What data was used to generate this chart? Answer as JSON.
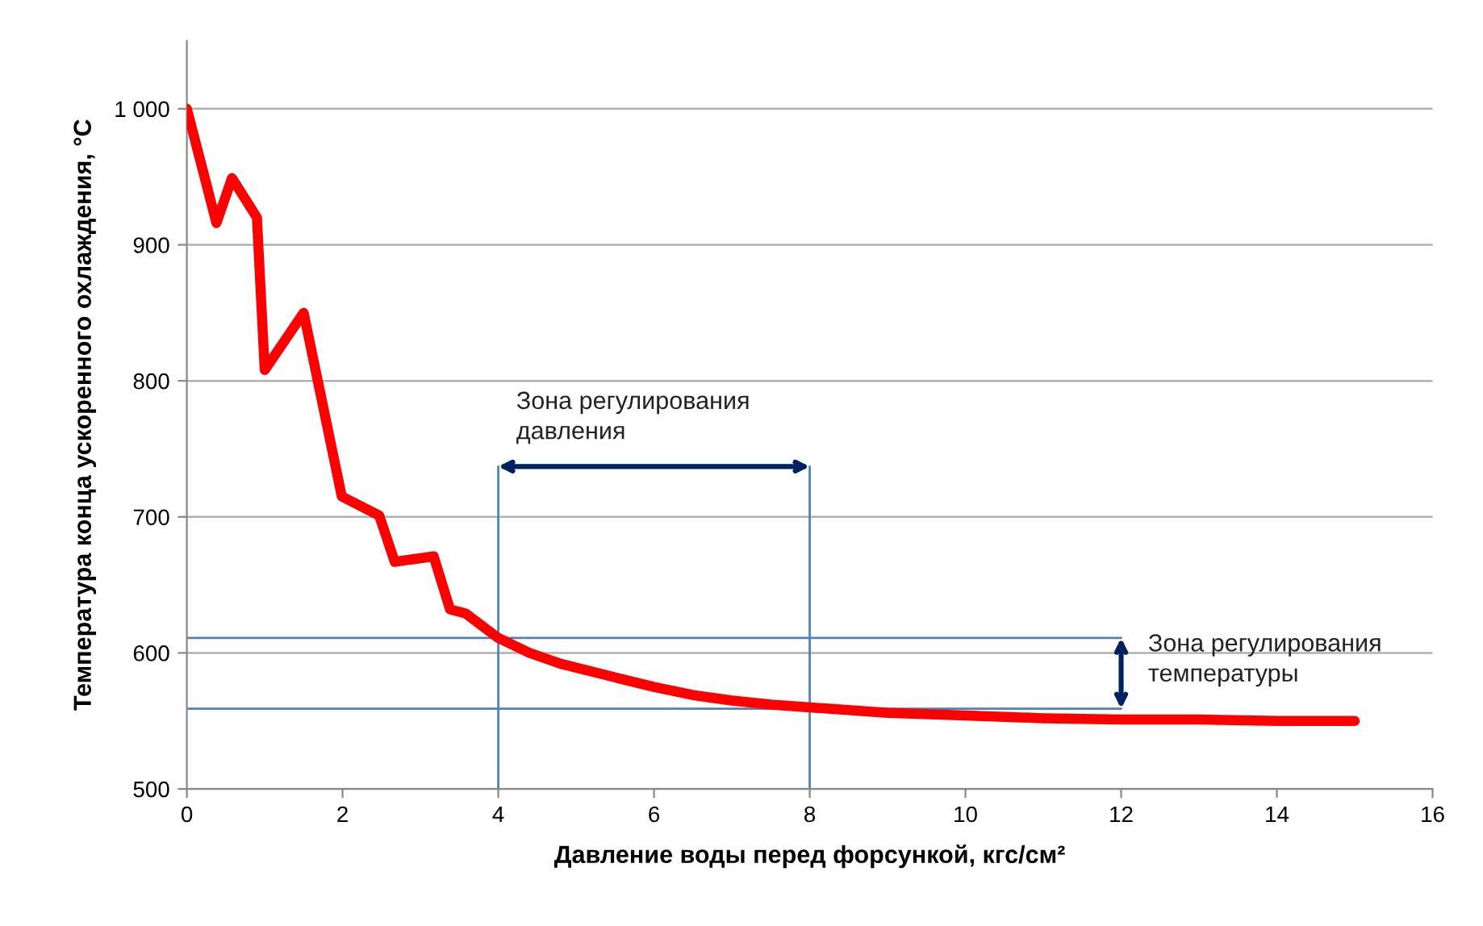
{
  "chart_data": {
    "type": "line",
    "xlabel": "Давление воды перед форсункой, кгс/см²",
    "ylabel": "Температура конца ускоренного охлаждения, °С",
    "xlim": [
      0,
      16
    ],
    "xticks": [
      0,
      2,
      4,
      6,
      8,
      10,
      12,
      14,
      16
    ],
    "ylim": [
      500,
      1050
    ],
    "yticks": [
      500,
      600,
      700,
      800,
      900,
      {
        "value": 1000,
        "label": "1 000"
      }
    ],
    "grid": "y",
    "marker": "none",
    "line_style": "solid",
    "series": [
      {
        "color": "#ff0000",
        "x": [
          0,
          0.38,
          0.58,
          0.9,
          1.0,
          1.5,
          1.99,
          2.47,
          2.67,
          3.17,
          3.38,
          3.58,
          4.0,
          4.4,
          4.8,
          5.5,
          6.0,
          6.5,
          7.0,
          7.5,
          8.0,
          9.0,
          10.0,
          11.0,
          12.0,
          13.0,
          14.0,
          15.0
        ],
        "values": [
          1000,
          916,
          949,
          920,
          808,
          850,
          715,
          701,
          667,
          671,
          632,
          629,
          611,
          600,
          592,
          582,
          575,
          569,
          565,
          562,
          560,
          556,
          554,
          552,
          551,
          551,
          550,
          550
        ]
      },
      {
        "color": "#4f81bd",
        "x": [
          0,
          12
        ],
        "values": [
          611,
          611
        ]
      },
      {
        "color": "#4f81bd",
        "x": [
          0,
          12
        ],
        "values": [
          559,
          559
        ]
      },
      {
        "color": "#4f81bd",
        "x": [
          4,
          4
        ],
        "values": [
          500,
          737
        ]
      },
      {
        "color": "#4f81bd",
        "x": [
          8,
          8
        ],
        "values": [
          500,
          737
        ]
      }
    ],
    "annotations": [
      {
        "text": "Зона регулирования\nдавления",
        "x": 4,
        "y": 737
      },
      "Зона регулирования\nтемпературы"
    ]
  }
}
